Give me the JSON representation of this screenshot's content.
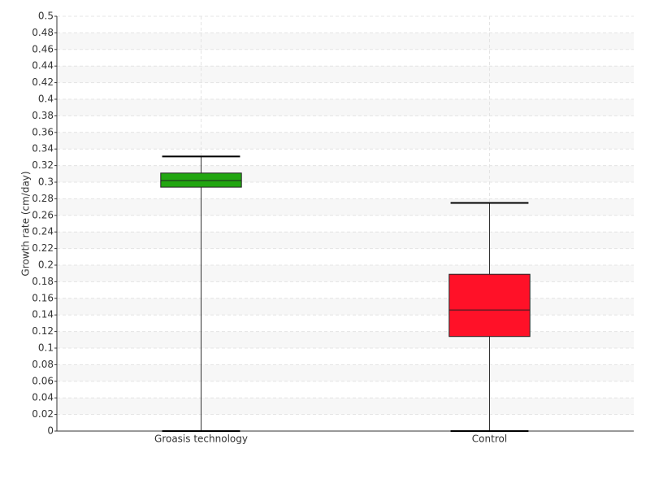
{
  "chart_data": {
    "type": "box",
    "y_label": "Growth rate (cm/day)",
    "categories": [
      "Groasis technology",
      "Control"
    ],
    "boxes": [
      {
        "min": 0,
        "q1": 0.294,
        "median": 0.302,
        "q3": 0.311,
        "max": 0.331,
        "color": "#22a611"
      },
      {
        "min": 0,
        "q1": 0.114,
        "median": 0.146,
        "q3": 0.189,
        "max": 0.275,
        "color": "#ff1128"
      }
    ],
    "ylim": [
      0,
      0.5
    ],
    "yticks": [
      0,
      0.02,
      0.04,
      0.06,
      0.08,
      0.1,
      0.12,
      0.14,
      0.16,
      0.18,
      0.2,
      0.22,
      0.24,
      0.26,
      0.28,
      0.3,
      0.32,
      0.34,
      0.36,
      0.38,
      0.4,
      0.42,
      0.44,
      0.46,
      0.48,
      0.5
    ],
    "grid": true
  }
}
